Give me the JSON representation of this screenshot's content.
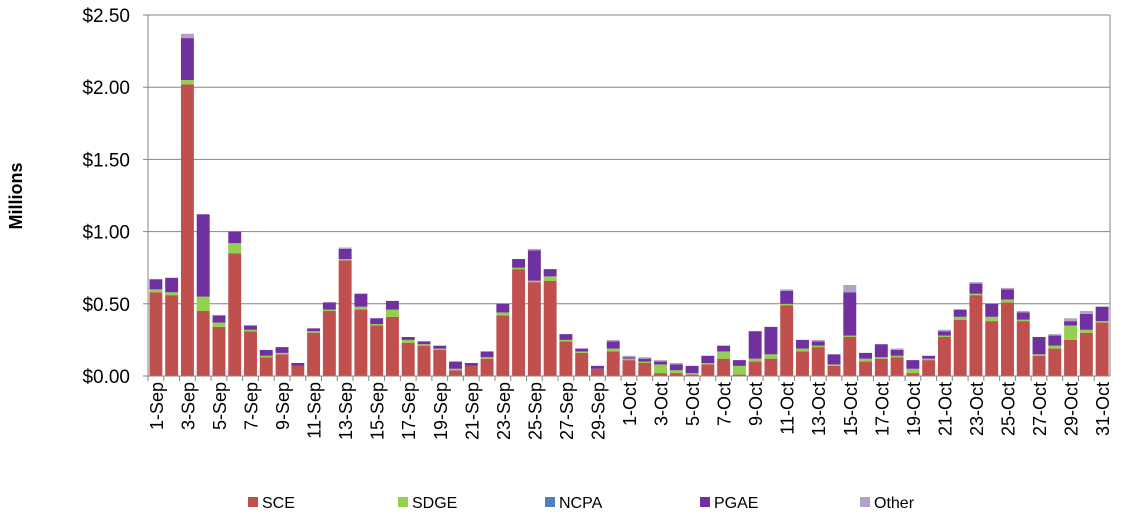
{
  "chart_data": {
    "type": "stacked_bar",
    "y_label": "Millions",
    "categories": [
      "1-Sep",
      null,
      "3-Sep",
      null,
      "5-Sep",
      null,
      "7-Sep",
      null,
      "9-Sep",
      null,
      "11-Sep",
      null,
      "13-Sep",
      null,
      "15-Sep",
      null,
      "17-Sep",
      null,
      "19-Sep",
      null,
      "21-Sep",
      null,
      "23-Sep",
      null,
      "25-Sep",
      null,
      "27-Sep",
      null,
      "29-Sep",
      null,
      "1-Oct",
      null,
      "3-Oct",
      null,
      "5-Oct",
      null,
      "7-Oct",
      null,
      "9-Oct",
      null,
      "11-Oct",
      null,
      "13-Oct",
      null,
      "15-Oct",
      null,
      "17-Oct",
      null,
      "19-Oct",
      null,
      "21-Oct",
      null,
      "23-Oct",
      null,
      "25-Oct",
      null,
      "27-Oct",
      null,
      "29-Oct",
      null,
      "31-Oct"
    ],
    "series": [
      {
        "name": "SCE",
        "color": "#c0504d",
        "values": [
          0.58,
          0.56,
          2.02,
          0.45,
          0.34,
          0.85,
          0.31,
          0.13,
          0.15,
          0.07,
          0.3,
          0.45,
          0.8,
          0.46,
          0.35,
          0.41,
          0.23,
          0.21,
          0.18,
          0.04,
          0.07,
          0.12,
          0.42,
          0.74,
          0.65,
          0.66,
          0.24,
          0.16,
          0.05,
          0.17,
          0.11,
          0.09,
          0.02,
          0.02,
          0.01,
          0.08,
          0.12,
          0.01,
          0.1,
          0.12,
          0.49,
          0.17,
          0.2,
          0.07,
          0.27,
          0.1,
          0.12,
          0.13,
          0.02,
          0.11,
          0.27,
          0.39,
          0.56,
          0.38,
          0.51,
          0.38,
          0.14,
          0.19,
          0.25,
          0.3,
          0.37
        ]
      },
      {
        "name": "SDGE",
        "color": "#92d050",
        "values": [
          0.02,
          0.02,
          0.03,
          0.1,
          0.03,
          0.07,
          0.01,
          0.01,
          0.01,
          0,
          0.01,
          0.01,
          0.01,
          0.02,
          0.01,
          0.05,
          0.02,
          0.01,
          0.01,
          0.01,
          0,
          0.01,
          0.02,
          0.01,
          0.01,
          0.03,
          0.01,
          0.01,
          0,
          0.02,
          0.01,
          0.01,
          0.06,
          0.02,
          0.01,
          0.01,
          0.05,
          0.06,
          0.02,
          0.03,
          0.01,
          0.02,
          0.01,
          0.01,
          0.01,
          0.02,
          0.01,
          0.01,
          0.03,
          0.01,
          0.01,
          0.02,
          0.01,
          0.03,
          0.02,
          0.01,
          0.01,
          0.02,
          0.1,
          0.02,
          0.01
        ]
      },
      {
        "name": "NCPA",
        "color": "#4f81bd",
        "values": [
          0,
          0,
          0,
          0,
          0,
          0,
          0,
          0,
          0,
          0,
          0,
          0,
          0,
          0,
          0,
          0,
          0,
          0,
          0,
          0,
          0,
          0,
          0,
          0,
          0,
          0,
          0,
          0,
          0,
          0,
          0,
          0,
          0,
          0,
          0,
          0,
          0,
          0,
          0,
          0,
          0,
          0,
          0,
          0,
          0,
          0,
          0,
          0,
          0,
          0,
          0,
          0,
          0,
          0,
          0,
          0,
          0,
          0,
          0,
          0,
          0
        ]
      },
      {
        "name": "PGAE",
        "color": "#7030a0",
        "values": [
          0.07,
          0.1,
          0.29,
          0.57,
          0.05,
          0.08,
          0.03,
          0.04,
          0.04,
          0.02,
          0.02,
          0.05,
          0.07,
          0.09,
          0.04,
          0.06,
          0.02,
          0.02,
          0.02,
          0.05,
          0.02,
          0.04,
          0.06,
          0.06,
          0.21,
          0.05,
          0.04,
          0.02,
          0.02,
          0.05,
          0.01,
          0.02,
          0.02,
          0.04,
          0.05,
          0.05,
          0.04,
          0.04,
          0.19,
          0.19,
          0.09,
          0.06,
          0.03,
          0.07,
          0.3,
          0.04,
          0.09,
          0.04,
          0.06,
          0.02,
          0.03,
          0.05,
          0.07,
          0.09,
          0.07,
          0.05,
          0.12,
          0.07,
          0.03,
          0.11,
          0.1
        ]
      },
      {
        "name": "Other",
        "color": "#b3a2c7",
        "values": [
          0,
          0,
          0.03,
          0,
          0,
          0,
          0,
          0,
          0,
          0,
          0,
          0,
          0.01,
          0,
          0,
          0,
          0,
          0,
          0,
          0,
          0,
          0,
          0,
          0,
          0.01,
          0,
          0,
          0,
          0,
          0.01,
          0.01,
          0.01,
          0.01,
          0.01,
          0,
          0,
          0,
          0,
          0,
          0,
          0.01,
          0,
          0.01,
          0,
          0.05,
          0,
          0,
          0.01,
          0,
          0,
          0.01,
          0,
          0.01,
          0,
          0.01,
          0.01,
          0,
          0.01,
          0.02,
          0.02,
          0
        ]
      }
    ],
    "ylim": [
      0,
      2.5
    ],
    "yticks": [
      {
        "value": 0,
        "label": "$0.00"
      },
      {
        "value": 0.5,
        "label": "$0.50"
      },
      {
        "value": 1,
        "label": "$1.00"
      },
      {
        "value": 1.5,
        "label": "$1.50"
      },
      {
        "value": 2,
        "label": "$2.00"
      },
      {
        "value": 2.5,
        "label": "$2.50"
      }
    ],
    "grid": true
  }
}
